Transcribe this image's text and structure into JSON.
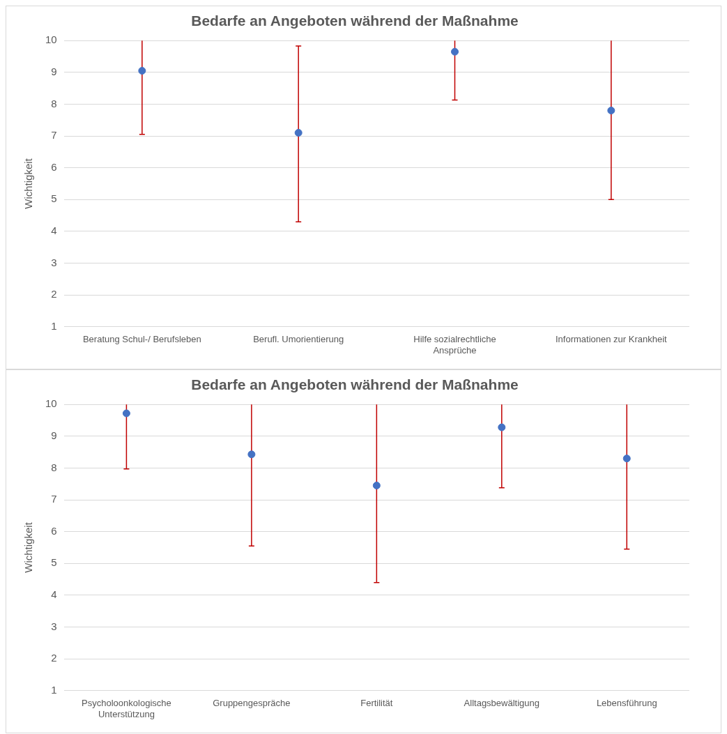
{
  "chart_data": [
    {
      "type": "scatter",
      "title": "Bedarfe an Angeboten während der Maßnahme",
      "ylabel": "Wichtigkeit",
      "categories": [
        "Beratung Schul-/ Berufsleben",
        "Berufl. Umorientierung",
        "Hilfe sozialrechtliche Ansprüche",
        "Informationen zur Krankheit"
      ],
      "values": [
        9.05,
        7.1,
        9.65,
        7.8
      ],
      "errors": [
        [
          7.05,
          10
        ],
        [
          4.3,
          9.83
        ],
        [
          8.13,
          10
        ],
        [
          5.0,
          10
        ]
      ],
      "color": "#4472c4",
      "ylim": [
        1,
        10
      ],
      "yticks": [
        1,
        2,
        3,
        4,
        5,
        6,
        7,
        8,
        9,
        10
      ],
      "grid": "y",
      "marker": "circle"
    },
    {
      "type": "scatter",
      "title": "Bedarfe an Angeboten während der Maßnahme",
      "ylabel": "Wichtigkeit",
      "categories": [
        "Psycholoonkologische Unterstützung",
        "Gruppengespräche",
        "Fertilität",
        "Alltagsbewältigung",
        "Lebensführung"
      ],
      "values": [
        9.72,
        8.43,
        7.45,
        9.28,
        8.3
      ],
      "errors": [
        [
          7.97,
          10
        ],
        [
          5.55,
          10
        ],
        [
          4.4,
          10
        ],
        [
          7.38,
          10
        ],
        [
          5.45,
          10
        ]
      ],
      "color": "#4472c4",
      "ylim": [
        1,
        10
      ],
      "yticks": [
        1,
        2,
        3,
        4,
        5,
        6,
        7,
        8,
        9,
        10
      ],
      "grid": "y",
      "marker": "circle"
    }
  ]
}
